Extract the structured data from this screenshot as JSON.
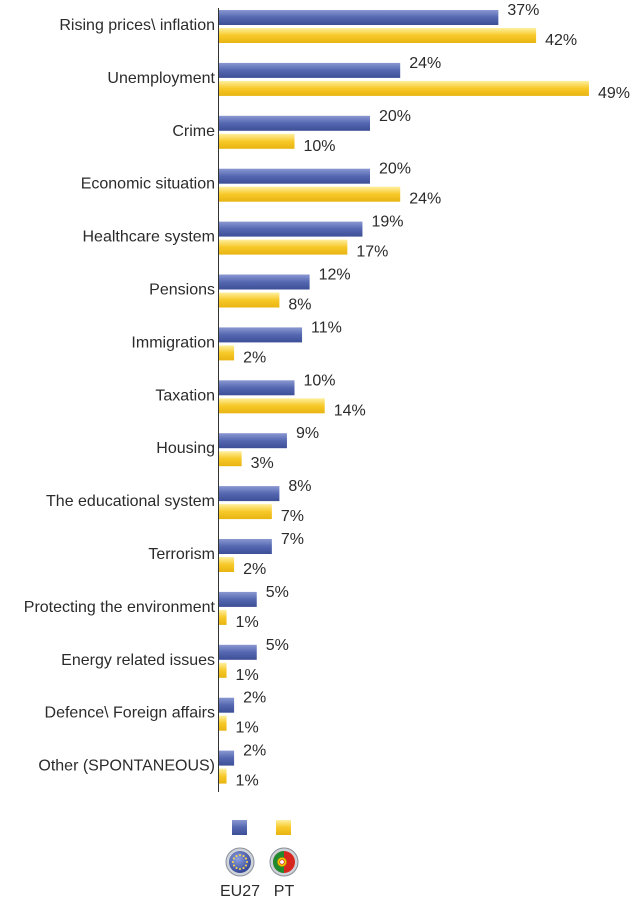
{
  "chart_data": {
    "type": "bar",
    "orientation": "horizontal",
    "categories": [
      "Rising prices\\ inflation",
      "Unemployment",
      "Crime",
      "Economic situation",
      "Healthcare system",
      "Pensions",
      "Immigration",
      "Taxation",
      "Housing",
      "The educational system",
      "Terrorism",
      "Protecting the environment",
      "Energy related issues",
      "Defence\\ Foreign affairs",
      "Other (SPONTANEOUS)"
    ],
    "series": [
      {
        "name": "EU27",
        "color": "#5b6db3",
        "values": [
          37,
          24,
          20,
          20,
          19,
          12,
          11,
          10,
          9,
          8,
          7,
          5,
          5,
          2,
          2
        ]
      },
      {
        "name": "PT",
        "color": "#f8cd2e",
        "values": [
          42,
          49,
          10,
          24,
          17,
          8,
          2,
          14,
          3,
          7,
          2,
          1,
          1,
          1,
          1
        ]
      }
    ],
    "value_suffix": "%",
    "legend_placement": "bottom",
    "grid": false
  }
}
